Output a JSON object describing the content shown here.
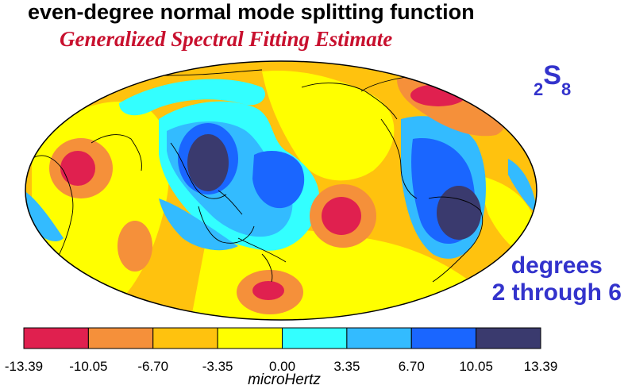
{
  "title": "even-degree normal mode splitting function",
  "subtitle": "Generalized Spectral Fitting Estimate",
  "mode_label": {
    "sub_left": "2",
    "main": "S",
    "sub_right": "8"
  },
  "degrees_label": {
    "line1": "degrees",
    "line2": "2 through 6"
  },
  "colorbar": {
    "colors": [
      "#e0204f",
      "#f5903a",
      "#ffc20e",
      "#ffff00",
      "#33ffff",
      "#33bbff",
      "#1a66ff",
      "#3a3a6e"
    ],
    "ticks": [
      "-13.39",
      "-10.05",
      "-6.70",
      "-3.35",
      "0.00",
      "3.35",
      "6.70",
      "10.05",
      "13.39"
    ],
    "unit": "microHertz"
  },
  "palette": {
    "red": "#e0204f",
    "orange": "#f5903a",
    "yellow_orange": "#ffc20e",
    "yellow": "#ffff00",
    "cyan": "#33ffff",
    "light_blue": "#33bbff",
    "blue": "#1a66ff",
    "navy": "#3a3a6e"
  }
}
